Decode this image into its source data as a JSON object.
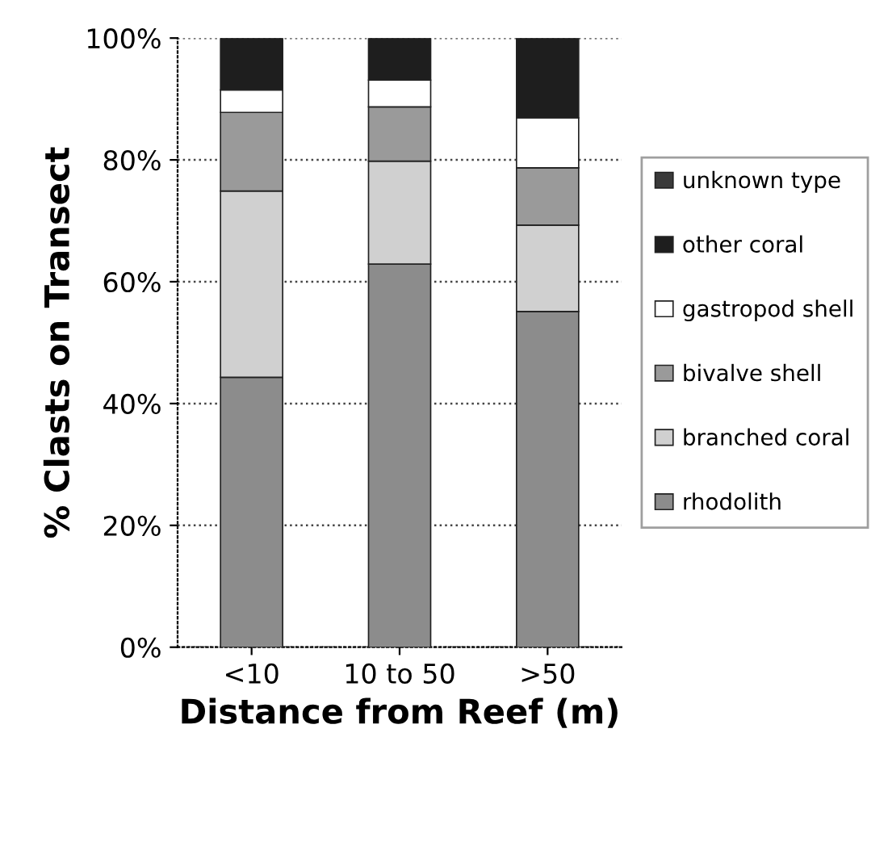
{
  "chart_data": {
    "type": "bar",
    "stacked": true,
    "xlabel": "Distance from Reef (m)",
    "ylabel": "% Clasts on Transect",
    "categories": [
      "<10",
      "10 to 50",
      ">50"
    ],
    "series": [
      {
        "name": "rhodolith",
        "color": "#8c8c8c",
        "values": [
          44.3,
          62.9,
          55.1
        ]
      },
      {
        "name": "branched coral",
        "color": "#d0d0d0",
        "values": [
          30.6,
          16.9,
          14.2
        ]
      },
      {
        "name": "bivalve shell",
        "color": "#9a9a9a",
        "values": [
          12.9,
          8.9,
          9.4
        ]
      },
      {
        "name": "gastropod shell",
        "color": "#ffffff",
        "values": [
          3.7,
          4.4,
          8.2
        ]
      },
      {
        "name": "other coral",
        "color": "#1e1e1e",
        "values": [
          8.5,
          6.9,
          13.1
        ]
      },
      {
        "name": "unknown type",
        "color": "#3a3a3a",
        "values": [
          0,
          0,
          0
        ]
      }
    ],
    "ylim": [
      0,
      100
    ],
    "yticks": [
      {
        "value": 0,
        "label": "0%"
      },
      {
        "value": 20,
        "label": "20%"
      },
      {
        "value": 40,
        "label": "40%"
      },
      {
        "value": 60,
        "label": "60%"
      },
      {
        "value": 80,
        "label": "80%"
      },
      {
        "value": 100,
        "label": "100%"
      }
    ],
    "grid": "y",
    "legend": "right"
  }
}
